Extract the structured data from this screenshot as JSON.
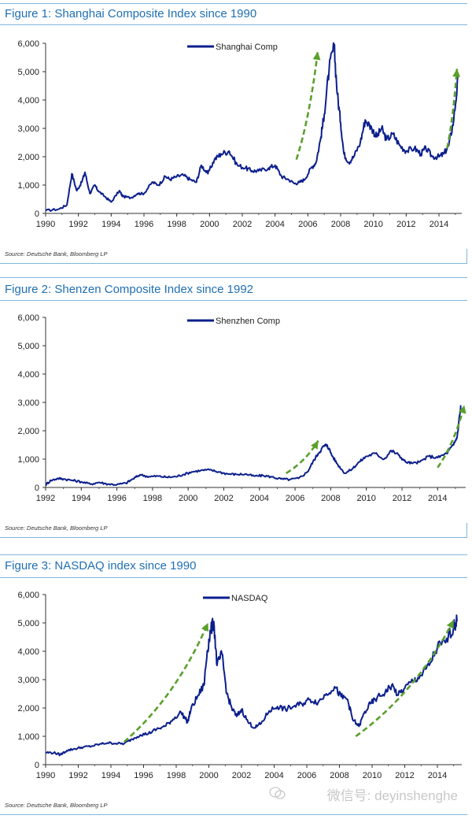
{
  "colors": {
    "series": "#0c1f8c",
    "trend": "#5aa02c",
    "title": "#1f6fb2",
    "frame": "#7fb7dd"
  },
  "charts": [
    {
      "title": "Figure 1: Shanghai Composite Index since 1990",
      "source": "Source: Deutsche Bank, Bloomberg LP",
      "legend": "Shanghai Comp",
      "yticks": [
        "6,000",
        "5,000",
        "4,000",
        "3,000",
        "2,000",
        "1,000",
        "0"
      ],
      "xticks": [
        "1990",
        "1992",
        "1994",
        "1996",
        "1998",
        "2000",
        "2002",
        "2004",
        "2006",
        "2008",
        "2010",
        "2012",
        "2014"
      ]
    },
    {
      "title": "Figure 2: Shenzen Composite Index since 1992",
      "source": "Source: Deutsche Bank, Bloomberg LP",
      "legend": "Shenzhen Comp",
      "yticks": [
        "6,000",
        "5,000",
        "4,000",
        "3,000",
        "2,000",
        "1,000",
        "0"
      ],
      "xticks": [
        "1992",
        "1994",
        "1996",
        "1998",
        "2000",
        "2002",
        "2004",
        "2006",
        "2008",
        "2010",
        "2012",
        "2014"
      ]
    },
    {
      "title": "Figure 3: NASDAQ index since 1990",
      "source": "Source: Deutsche Bank, Bloomberg LP",
      "legend": "NASDAQ",
      "yticks": [
        "6,000",
        "5,000",
        "4,000",
        "3,000",
        "2,000",
        "1,000",
        "0"
      ],
      "xticks": [
        "1990",
        "1992",
        "1994",
        "1996",
        "1998",
        "2000",
        "2002",
        "2004",
        "2006",
        "2008",
        "2010",
        "2012",
        "2014"
      ]
    }
  ],
  "watermark": {
    "text": "微信号: deyinshenghe"
  },
  "chart_data": [
    {
      "type": "line",
      "title": "Figure 1: Shanghai Composite Index since 1990",
      "ylim": [
        0,
        6000
      ],
      "xlim": [
        1990,
        2015.2
      ],
      "series": [
        {
          "name": "Shanghai Comp",
          "x": [
            1990,
            1990.8,
            1991.3,
            1991.6,
            1991.9,
            1992.2,
            1992.4,
            1992.7,
            1993.0,
            1993.2,
            1993.6,
            1994.0,
            1994.5,
            1994.7,
            1995.2,
            1995.6,
            1996.0,
            1996.5,
            1996.9,
            1997.3,
            1997.6,
            1998.0,
            1998.4,
            1998.8,
            1999.2,
            1999.5,
            1999.9,
            2000.3,
            2000.7,
            2001.2,
            2001.7,
            2002.2,
            2002.6,
            2003.0,
            2003.6,
            2004.0,
            2004.4,
            2004.8,
            2005.2,
            2005.5,
            2005.8,
            2006.2,
            2006.5,
            2006.8,
            2007.0,
            2007.3,
            2007.6,
            2007.8,
            2008.0,
            2008.2,
            2008.5,
            2008.8,
            2009.2,
            2009.5,
            2009.9,
            2010.2,
            2010.5,
            2010.8,
            2011.2,
            2011.6,
            2012.0,
            2012.5,
            2012.9,
            2013.2,
            2013.6,
            2014.0,
            2014.3,
            2014.6,
            2014.9,
            2015.2
          ],
          "values": [
            100,
            150,
            300,
            1400,
            800,
            1100,
            1450,
            700,
            1000,
            800,
            600,
            400,
            800,
            600,
            550,
            700,
            700,
            1100,
            1000,
            1300,
            1200,
            1300,
            1350,
            1200,
            1100,
            1700,
            1400,
            1900,
            2100,
            2200,
            1700,
            1600,
            1500,
            1500,
            1600,
            1700,
            1300,
            1200,
            1050,
            1100,
            1200,
            1600,
            1800,
            2700,
            3500,
            5100,
            5900,
            4200,
            3200,
            2100,
            1800,
            2000,
            2500,
            3300,
            3000,
            2700,
            3000,
            2600,
            2800,
            2400,
            2200,
            2300,
            2100,
            2300,
            2000,
            2000,
            2100,
            2400,
            3300,
            4950
          ]
        }
      ],
      "trend_arrows": [
        {
          "from": [
            2005.3,
            1900
          ],
          "to": [
            2006.6,
            5700
          ]
        },
        {
          "from": [
            2014.5,
            2300
          ],
          "to": [
            2015.1,
            5100
          ]
        }
      ]
    },
    {
      "type": "line",
      "title": "Figure 2: Shenzen Composite Index since 1992",
      "ylim": [
        0,
        6000
      ],
      "xlim": [
        1992,
        2015.4
      ],
      "series": [
        {
          "name": "Shenzhen Comp",
          "x": [
            1992,
            1992.3,
            1992.7,
            1993.0,
            1993.5,
            1994.0,
            1994.5,
            1995.0,
            1995.5,
            1996.0,
            1996.5,
            1996.9,
            1997.3,
            1997.8,
            1998.3,
            1998.8,
            1999.3,
            1999.7,
            2000.2,
            2000.7,
            2001.2,
            2001.7,
            2002.2,
            2002.7,
            2003.2,
            2003.7,
            2004.2,
            2004.7,
            2005.2,
            2005.7,
            2006.2,
            2006.7,
            2007.0,
            2007.3,
            2007.6,
            2007.8,
            2008.1,
            2008.4,
            2008.8,
            2009.2,
            2009.6,
            2010.0,
            2010.5,
            2011.0,
            2011.4,
            2011.8,
            2012.2,
            2012.6,
            2013.0,
            2013.5,
            2014.0,
            2014.5,
            2014.9,
            2015.1,
            2015.3
          ],
          "values": [
            100,
            250,
            320,
            300,
            250,
            200,
            120,
            180,
            120,
            100,
            150,
            300,
            450,
            380,
            400,
            360,
            380,
            450,
            550,
            600,
            620,
            550,
            480,
            460,
            470,
            400,
            420,
            370,
            300,
            280,
            320,
            550,
            900,
            1200,
            1450,
            1500,
            1100,
            800,
            500,
            650,
            900,
            1100,
            1200,
            1000,
            1300,
            1150,
            900,
            850,
            900,
            1100,
            1050,
            1200,
            1500,
            1800,
            2900
          ]
        }
      ],
      "trend_arrows": [
        {
          "from": [
            2005.5,
            500
          ],
          "to": [
            2007.3,
            1650
          ]
        },
        {
          "from": [
            2014.0,
            700
          ],
          "to": [
            2015.5,
            2900
          ]
        }
      ]
    },
    {
      "type": "line",
      "title": "Figure 3: NASDAQ index since 1990",
      "ylim": [
        0,
        6000
      ],
      "xlim": [
        1990,
        2015.3
      ],
      "series": [
        {
          "name": "NASDAQ",
          "x": [
            1990,
            1990.5,
            1990.9,
            1991.3,
            1991.8,
            1992.3,
            1992.8,
            1993.3,
            1993.8,
            1994.3,
            1994.8,
            1995.3,
            1995.8,
            1996.3,
            1996.8,
            1997.3,
            1997.8,
            1998.3,
            1998.7,
            1998.9,
            1999.3,
            1999.7,
            1999.9,
            2000.1,
            2000.3,
            2000.5,
            2000.8,
            2001.1,
            2001.4,
            2001.7,
            2002.0,
            2002.4,
            2002.8,
            2003.2,
            2003.7,
            2004.2,
            2004.7,
            2005.2,
            2005.7,
            2006.2,
            2006.7,
            2007.2,
            2007.7,
            2008.1,
            2008.5,
            2008.8,
            2009.2,
            2009.5,
            2009.9,
            2010.3,
            2010.8,
            2011.2,
            2011.6,
            2012.0,
            2012.5,
            2013.0,
            2013.5,
            2014.0,
            2014.5,
            2015.0,
            2015.2
          ],
          "values": [
            430,
            420,
            350,
            500,
            560,
            620,
            650,
            720,
            770,
            750,
            740,
            900,
            1050,
            1100,
            1250,
            1350,
            1600,
            1850,
            1500,
            1950,
            2400,
            2800,
            4000,
            4700,
            5050,
            3500,
            3900,
            2500,
            2000,
            1700,
            1950,
            1500,
            1300,
            1450,
            1900,
            2050,
            1950,
            2050,
            2150,
            2300,
            2200,
            2500,
            2750,
            2400,
            2300,
            1600,
            1350,
            1800,
            2150,
            2350,
            2550,
            2800,
            2450,
            2700,
            2950,
            3150,
            3500,
            4150,
            4300,
            4900,
            5050
          ]
        }
      ],
      "trend_arrows": [
        {
          "from": [
            1994.8,
            800
          ],
          "to": [
            1999.95,
            5000
          ]
        },
        {
          "from": [
            2009.0,
            1000
          ],
          "to": [
            2015.0,
            5100
          ]
        }
      ]
    }
  ]
}
